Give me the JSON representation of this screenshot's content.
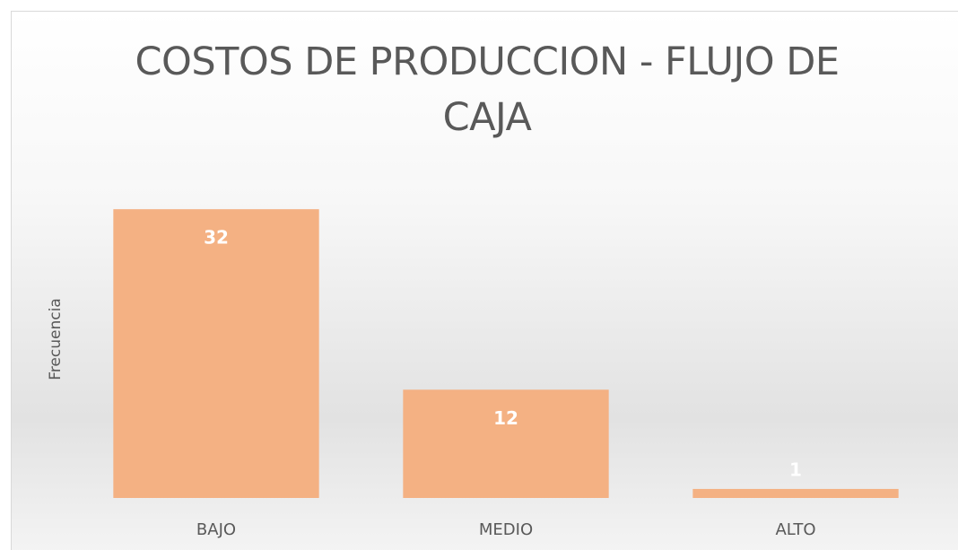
{
  "chart_data": {
    "type": "bar",
    "title": "COSTOS DE PRODUCCION - FLUJO DE CAJA",
    "y_label": "Frecuencia",
    "categories": [
      "BAJO",
      "MEDIO",
      "ALTO"
    ],
    "values": [
      32,
      12,
      1
    ],
    "color": "#f4b183",
    "ylim": [
      0,
      35
    ]
  }
}
